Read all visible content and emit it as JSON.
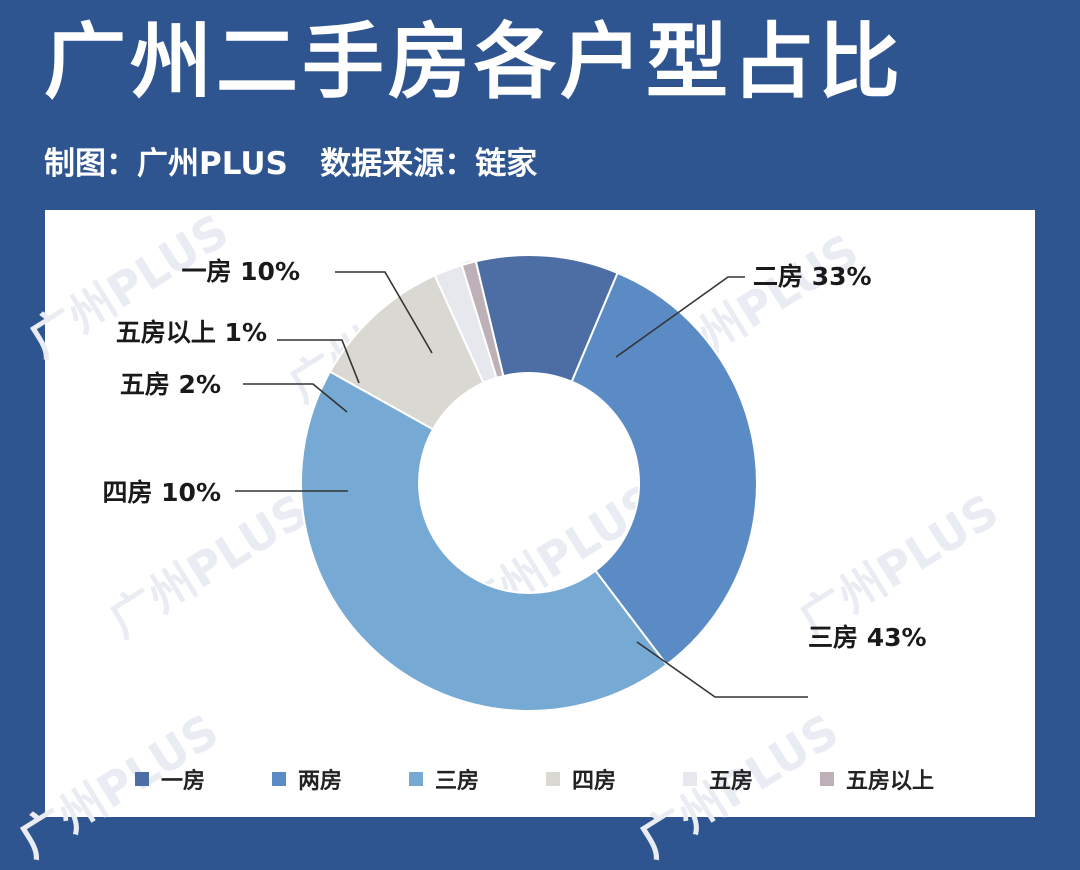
{
  "title": "广州二手房各户型占比",
  "subtitle": "制图：广州PLUS   数据来源：链家",
  "watermark_text": "广州PLUS",
  "colors": {
    "background": "#2f5590",
    "card": "#ffffff"
  },
  "chart_data": {
    "type": "pie",
    "style": "donut",
    "slices": [
      {
        "label": "一房",
        "legend": "一房",
        "value": 10,
        "display": "一房  10%",
        "color": "#4d6ea4"
      },
      {
        "label": "二房",
        "legend": "两房",
        "value": 33,
        "display": "二房  33%",
        "color": "#5b8bc5"
      },
      {
        "label": "三房",
        "legend": "三房",
        "value": 43,
        "display": "三房  43%",
        "color": "#76a9d3"
      },
      {
        "label": "四房",
        "legend": "四房",
        "value": 10,
        "display": "四房  10%",
        "color": "#dad8d2"
      },
      {
        "label": "五房",
        "legend": "五房",
        "value": 2,
        "display": "五房  2%",
        "color": "#e6e8ee"
      },
      {
        "label": "五房以上",
        "legend": "五房以上",
        "value": 1,
        "display": "五房以上  1%",
        "color": "#bdb1b7"
      }
    ],
    "legend_position": "bottom"
  }
}
